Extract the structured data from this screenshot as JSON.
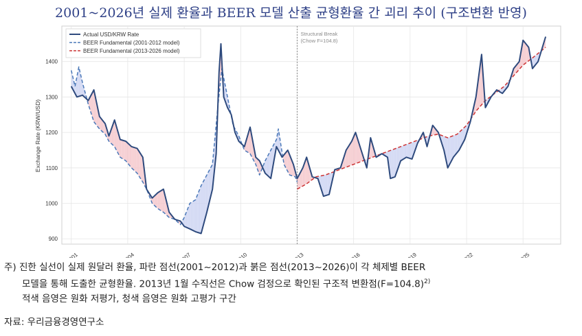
{
  "title": "2001~2026년 실제 환율과 BEER 모델 산출 균형환율 간 괴리 추이 (구조변환 반영)",
  "note": {
    "line1": "주) 진한 실선이 실제 원달러 환율, 파란 점선(2001~2012)과 붉은 점선(2013~2026)이 각 체제별 BEER",
    "line2": "모델을 통해 도출한 균형환율. 2013년 1월 수직선은 Chow 검정으로 확인된 구조적 변환점(F=104.8)",
    "line2_sup": "2)",
    "line3": "적색 음영은 원화 저평가, 청색 음영은 원화 고평가 구간"
  },
  "source": "자료: 우리금융경영연구소",
  "chart_data": {
    "type": "line",
    "title": "2001~2026년 실제 환율과 BEER 모델 산출 균형환율 간 괴리 추이 (구조변환 반영)",
    "ylabel": "Exchange Rate (KRW/USD)",
    "xlabel": "",
    "xlim": [
      2000.5,
      2027.0
    ],
    "ylim": [
      885,
      1500
    ],
    "x_ticks": [
      "2001",
      "2004",
      "2007",
      "2010",
      "2013",
      "2016",
      "2019",
      "2022",
      "2025"
    ],
    "y_ticks": [
      900,
      1000,
      1100,
      1200,
      1300,
      1400
    ],
    "grid": true,
    "legend": "top-left",
    "annotation": {
      "line1": "Structural Break",
      "line2": "(Chow F=104.8)",
      "x": 2013.0
    },
    "shading": {
      "undervalued_color": "#f4c7cb",
      "overvalued_color": "#cdd3f2"
    },
    "series": [
      {
        "name": "Actual USD/KRW Rate",
        "color": "#2e4a7d",
        "style": "solid",
        "points": [
          [
            2001.0,
            1330
          ],
          [
            2001.3,
            1300
          ],
          [
            2001.6,
            1305
          ],
          [
            2001.9,
            1290
          ],
          [
            2002.2,
            1320
          ],
          [
            2002.5,
            1245
          ],
          [
            2002.8,
            1225
          ],
          [
            2003.0,
            1190
          ],
          [
            2003.3,
            1235
          ],
          [
            2003.6,
            1180
          ],
          [
            2003.9,
            1175
          ],
          [
            2004.2,
            1160
          ],
          [
            2004.5,
            1155
          ],
          [
            2004.8,
            1130
          ],
          [
            2005.0,
            1040
          ],
          [
            2005.3,
            1015
          ],
          [
            2005.6,
            1030
          ],
          [
            2005.9,
            1040
          ],
          [
            2006.2,
            975
          ],
          [
            2006.5,
            955
          ],
          [
            2006.8,
            950
          ],
          [
            2007.0,
            935
          ],
          [
            2007.3,
            928
          ],
          [
            2007.6,
            920
          ],
          [
            2007.9,
            915
          ],
          [
            2008.2,
            975
          ],
          [
            2008.5,
            1040
          ],
          [
            2008.7,
            1140
          ],
          [
            2008.85,
            1370
          ],
          [
            2008.95,
            1450
          ],
          [
            2009.1,
            1300
          ],
          [
            2009.3,
            1270
          ],
          [
            2009.5,
            1250
          ],
          [
            2009.7,
            1200
          ],
          [
            2009.9,
            1175
          ],
          [
            2010.2,
            1160
          ],
          [
            2010.5,
            1215
          ],
          [
            2010.8,
            1130
          ],
          [
            2011.0,
            1120
          ],
          [
            2011.3,
            1085
          ],
          [
            2011.6,
            1070
          ],
          [
            2011.9,
            1160
          ],
          [
            2012.2,
            1130
          ],
          [
            2012.5,
            1150
          ],
          [
            2012.8,
            1110
          ],
          [
            2013.0,
            1070
          ],
          [
            2013.3,
            1100
          ],
          [
            2013.5,
            1130
          ],
          [
            2013.8,
            1075
          ],
          [
            2014.1,
            1070
          ],
          [
            2014.4,
            1020
          ],
          [
            2014.7,
            1025
          ],
          [
            2015.0,
            1095
          ],
          [
            2015.3,
            1100
          ],
          [
            2015.6,
            1150
          ],
          [
            2015.9,
            1175
          ],
          [
            2016.1,
            1200
          ],
          [
            2016.4,
            1150
          ],
          [
            2016.7,
            1100
          ],
          [
            2016.9,
            1185
          ],
          [
            2017.2,
            1130
          ],
          [
            2017.5,
            1140
          ],
          [
            2017.8,
            1130
          ],
          [
            2017.95,
            1070
          ],
          [
            2018.2,
            1075
          ],
          [
            2018.5,
            1120
          ],
          [
            2018.8,
            1130
          ],
          [
            2019.1,
            1125
          ],
          [
            2019.4,
            1170
          ],
          [
            2019.7,
            1200
          ],
          [
            2019.9,
            1160
          ],
          [
            2020.2,
            1220
          ],
          [
            2020.5,
            1200
          ],
          [
            2020.8,
            1150
          ],
          [
            2021.0,
            1100
          ],
          [
            2021.3,
            1130
          ],
          [
            2021.6,
            1150
          ],
          [
            2021.9,
            1180
          ],
          [
            2022.2,
            1230
          ],
          [
            2022.5,
            1300
          ],
          [
            2022.8,
            1420
          ],
          [
            2023.0,
            1270
          ],
          [
            2023.3,
            1300
          ],
          [
            2023.6,
            1320
          ],
          [
            2023.9,
            1310
          ],
          [
            2024.2,
            1330
          ],
          [
            2024.5,
            1380
          ],
          [
            2024.8,
            1400
          ],
          [
            2025.0,
            1460
          ],
          [
            2025.3,
            1440
          ],
          [
            2025.5,
            1380
          ],
          [
            2025.8,
            1400
          ],
          [
            2026.2,
            1470
          ]
        ]
      },
      {
        "name": "BEER Fundamental (2001-2012 model)",
        "color": "#4a78b8",
        "style": "dashed",
        "points": [
          [
            2001.0,
            1375
          ],
          [
            2001.2,
            1330
          ],
          [
            2001.4,
            1385
          ],
          [
            2001.6,
            1340
          ],
          [
            2001.9,
            1280
          ],
          [
            2002.2,
            1230
          ],
          [
            2002.5,
            1210
          ],
          [
            2002.8,
            1195
          ],
          [
            2003.0,
            1175
          ],
          [
            2003.3,
            1160
          ],
          [
            2003.6,
            1130
          ],
          [
            2003.9,
            1120
          ],
          [
            2004.2,
            1100
          ],
          [
            2004.5,
            1085
          ],
          [
            2004.8,
            1060
          ],
          [
            2005.0,
            1040
          ],
          [
            2005.3,
            1000
          ],
          [
            2005.6,
            985
          ],
          [
            2005.9,
            975
          ],
          [
            2006.2,
            960
          ],
          [
            2006.5,
            955
          ],
          [
            2006.8,
            940
          ],
          [
            2007.0,
            960
          ],
          [
            2007.3,
            1000
          ],
          [
            2007.6,
            1010
          ],
          [
            2007.9,
            1050
          ],
          [
            2008.2,
            1080
          ],
          [
            2008.5,
            1110
          ],
          [
            2008.8,
            1280
          ],
          [
            2009.0,
            1380
          ],
          [
            2009.3,
            1300
          ],
          [
            2009.6,
            1220
          ],
          [
            2009.9,
            1190
          ],
          [
            2010.2,
            1150
          ],
          [
            2010.5,
            1140
          ],
          [
            2010.8,
            1110
          ],
          [
            2011.0,
            1080
          ],
          [
            2011.3,
            1120
          ],
          [
            2011.6,
            1150
          ],
          [
            2011.9,
            1180
          ],
          [
            2012.0,
            1210
          ],
          [
            2012.3,
            1110
          ],
          [
            2012.6,
            1080
          ],
          [
            2012.9,
            1075
          ],
          [
            2013.0,
            1060
          ]
        ]
      },
      {
        "name": "BEER Fundamental (2013-2026 model)",
        "color": "#cc3333",
        "style": "dashed",
        "points": [
          [
            2013.0,
            1040
          ],
          [
            2013.5,
            1055
          ],
          [
            2014.0,
            1075
          ],
          [
            2014.5,
            1080
          ],
          [
            2015.0,
            1090
          ],
          [
            2015.5,
            1100
          ],
          [
            2016.0,
            1110
          ],
          [
            2016.5,
            1120
          ],
          [
            2017.0,
            1130
          ],
          [
            2017.5,
            1140
          ],
          [
            2018.0,
            1150
          ],
          [
            2018.5,
            1160
          ],
          [
            2019.0,
            1170
          ],
          [
            2019.5,
            1180
          ],
          [
            2020.0,
            1190
          ],
          [
            2020.5,
            1195
          ],
          [
            2021.0,
            1185
          ],
          [
            2021.5,
            1195
          ],
          [
            2022.0,
            1220
          ],
          [
            2022.5,
            1260
          ],
          [
            2023.0,
            1290
          ],
          [
            2023.5,
            1310
          ],
          [
            2024.0,
            1330
          ],
          [
            2024.5,
            1360
          ],
          [
            2025.0,
            1390
          ],
          [
            2025.5,
            1410
          ],
          [
            2026.2,
            1440
          ]
        ]
      }
    ]
  }
}
